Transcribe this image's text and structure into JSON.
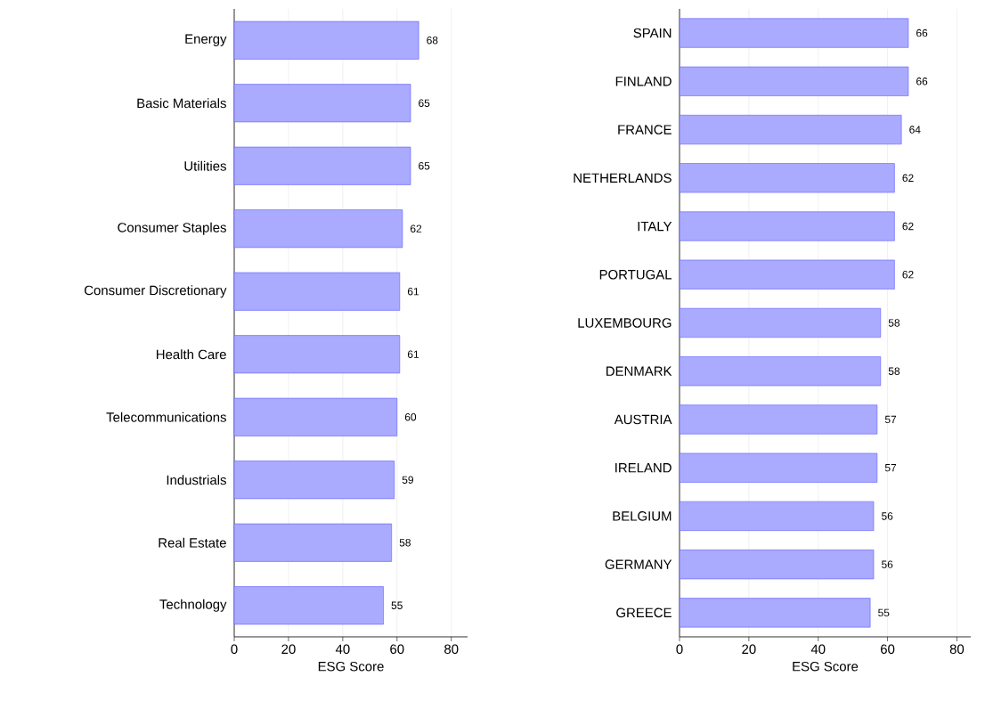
{
  "chart_data": [
    {
      "type": "bar",
      "orientation": "horizontal",
      "xlabel": "ESG Score",
      "categories": [
        "Energy",
        "Basic Materials",
        "Utilities",
        "Consumer Staples",
        "Consumer Discretionary",
        "Health Care",
        "Telecommunications",
        "Industrials",
        "Real Estate",
        "Technology"
      ],
      "values": [
        68,
        65,
        65,
        62,
        61,
        61,
        60,
        59,
        58,
        55
      ],
      "color": "#aaaaff",
      "data_labels": true,
      "grid": "x",
      "xlim": [
        0,
        86
      ],
      "xticks": [
        0,
        20,
        40,
        60,
        80
      ]
    },
    {
      "type": "bar",
      "orientation": "horizontal",
      "xlabel": "ESG Score",
      "categories": [
        "SPAIN",
        "FINLAND",
        "FRANCE",
        "NETHERLANDS",
        "ITALY",
        "PORTUGAL",
        "LUXEMBOURG",
        "DENMARK",
        "AUSTRIA",
        "IRELAND",
        "BELGIUM",
        "GERMANY",
        "GREECE"
      ],
      "values": [
        66,
        66,
        64,
        62,
        62,
        62,
        58,
        58,
        57,
        57,
        56,
        56,
        55
      ],
      "color": "#aaaaff",
      "data_labels": true,
      "grid": "x",
      "xlim": [
        0,
        84
      ],
      "xticks": [
        0,
        20,
        40,
        60,
        80
      ]
    }
  ]
}
